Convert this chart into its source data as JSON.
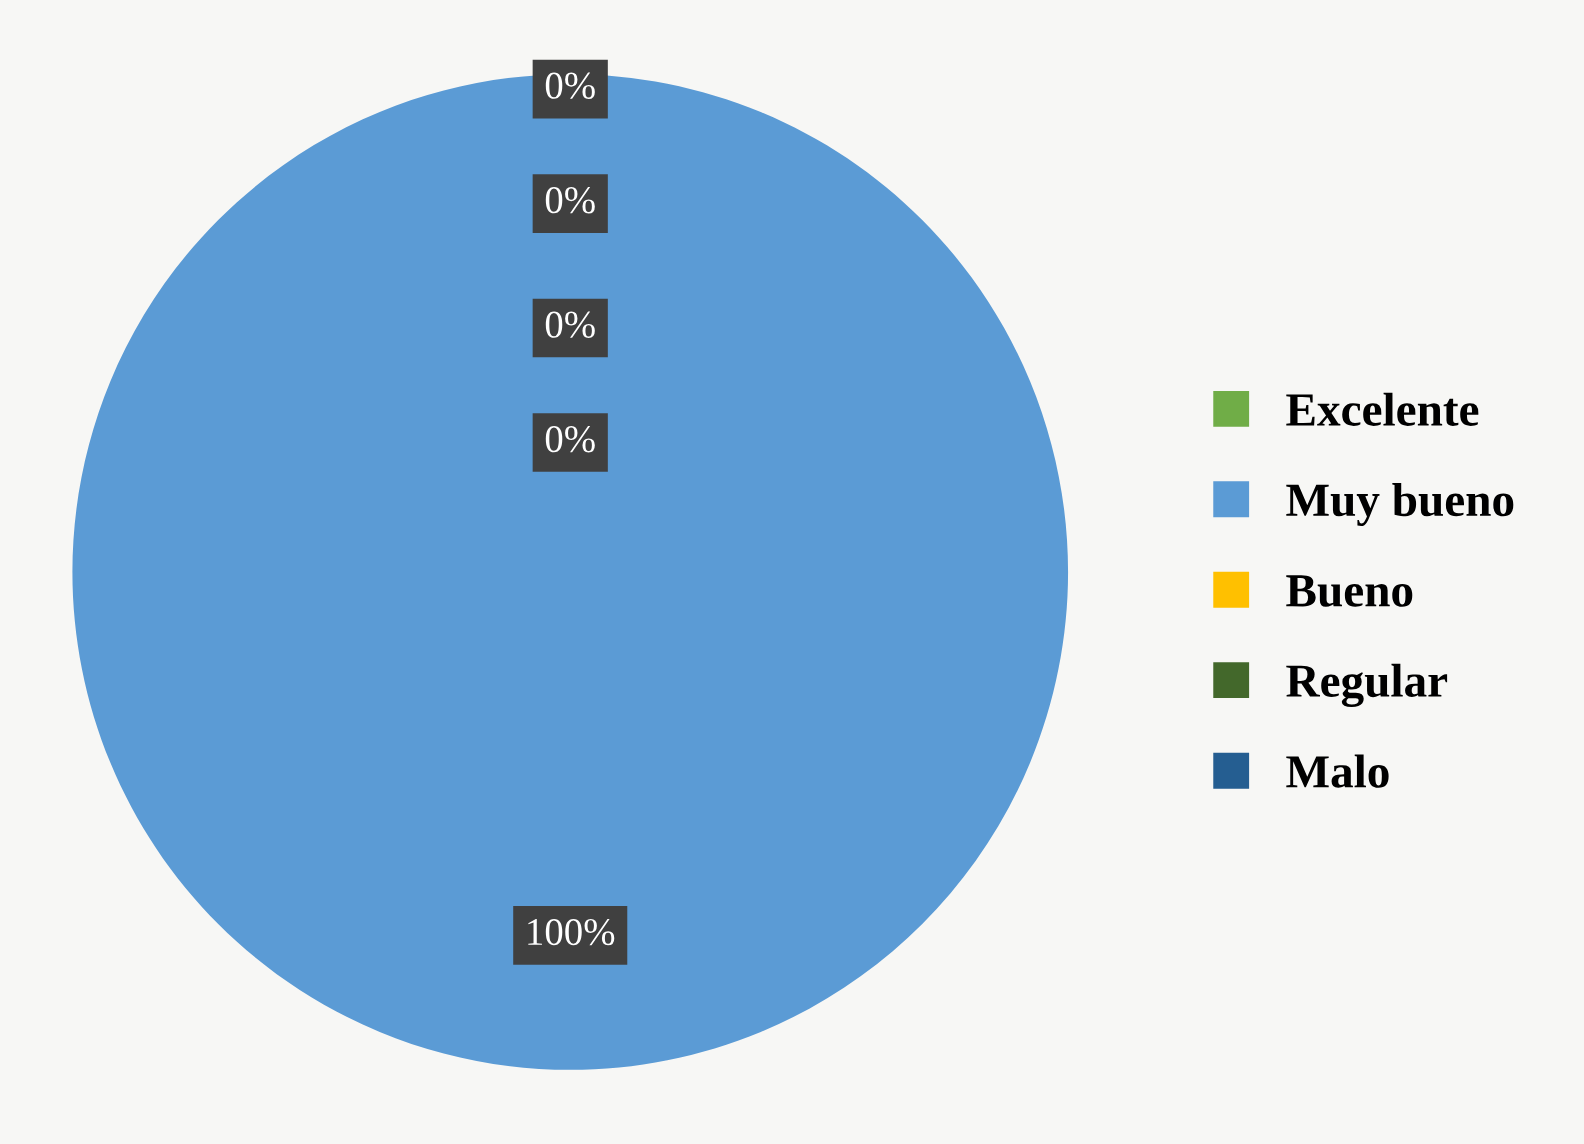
{
  "chart_data": {
    "type": "pie",
    "categories": [
      "Excelente",
      "Muy bueno",
      "Bueno",
      "Regular",
      "Malo"
    ],
    "values": [
      0,
      100,
      0,
      0,
      0
    ],
    "colors": [
      "#70ad47",
      "#5b9bd5",
      "#ffc000",
      "#43682b",
      "#255e91"
    ],
    "value_labels": [
      "0%",
      "100%",
      "0%",
      "0%",
      "0%"
    ],
    "legend": "right"
  }
}
